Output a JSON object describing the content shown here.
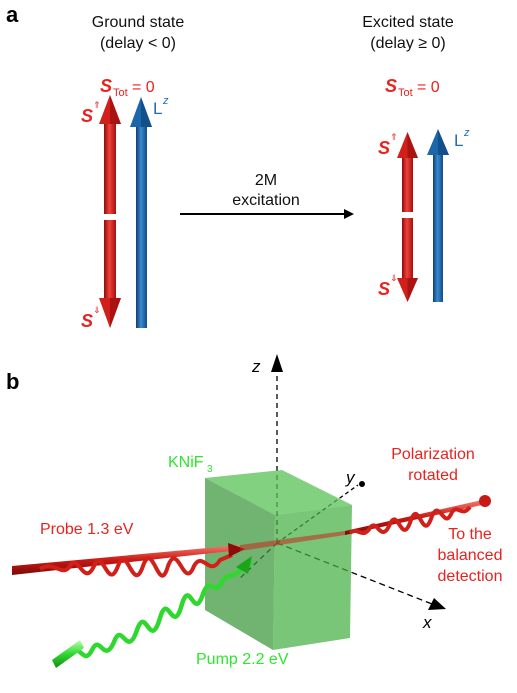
{
  "panel_a": {
    "label": "a",
    "ground_title": "Ground state",
    "ground_sub": "(delay < 0)",
    "excited_title": "Excited state",
    "excited_sub": "(delay ≥ 0)",
    "stot_symbol": "S",
    "stot_sub": "Tot",
    "stot_value": "= 0",
    "s_up": "S",
    "s_up_sup": "⇑",
    "s_down": "S",
    "s_down_sup": "⇓",
    "lz": "L",
    "lz_sup": "z",
    "transition_line1": "2M",
    "transition_line2": "excitation"
  },
  "panel_b": {
    "label": "b",
    "axis_z": "z",
    "axis_y": "y",
    "axis_x": "x",
    "crystal": "KNiF",
    "crystal_sub": "3",
    "probe": "Probe 1.3 eV",
    "pump": "Pump 2.2 eV",
    "pol_line1": "Polarization",
    "pol_line2": "rotated",
    "det_line1": "To the",
    "det_line2": "balanced",
    "det_line3": "detection"
  },
  "colors": {
    "red": "#e8231f",
    "blue": "#1f6cb4",
    "green": "#2ee62e",
    "crystal": "#3aa83a"
  }
}
